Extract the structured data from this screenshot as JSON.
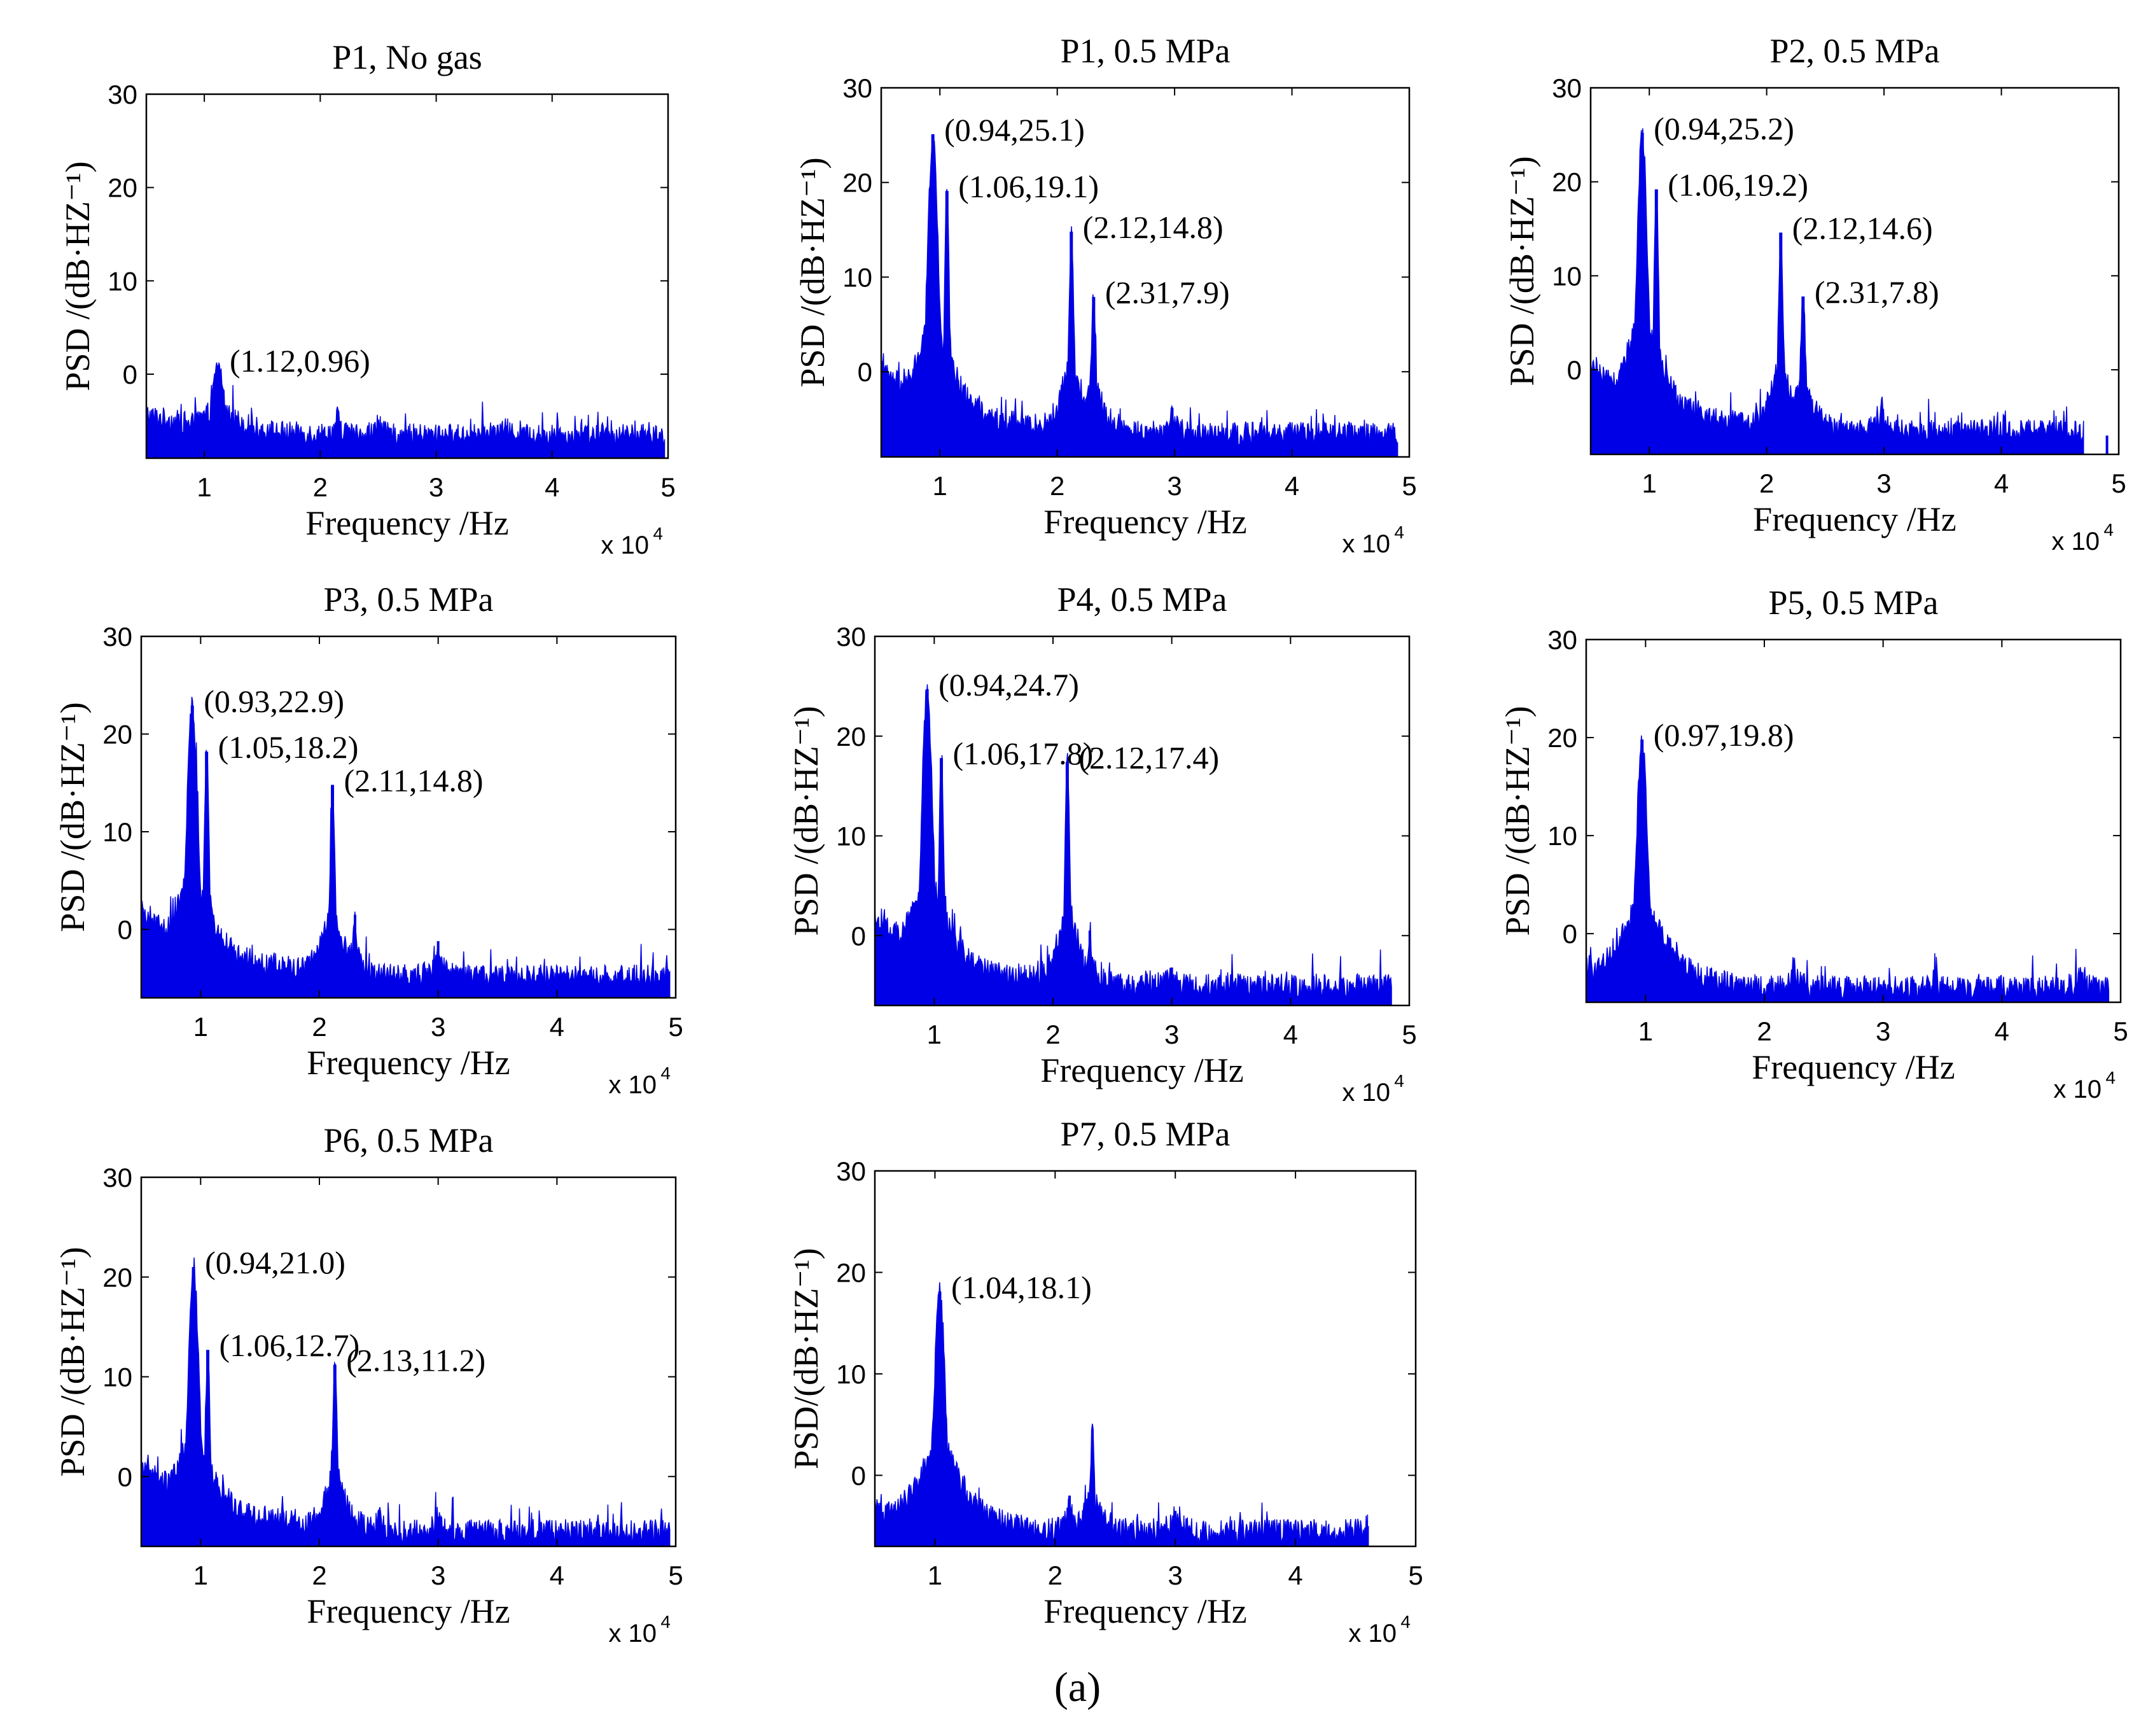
{
  "figure_caption": "(a)",
  "chart_data": [
    {
      "type": "area",
      "title": "P1, No gas",
      "xlabel": "Frequency /Hz",
      "ylabel": "PSD /(dB·HZ⁻¹)",
      "x_multiplier": "x 10",
      "x_exponent": "4",
      "xlim": [
        0.5,
        5
      ],
      "ylim": [
        -9,
        30
      ],
      "xticks": [
        1,
        2,
        3,
        4,
        5
      ],
      "yticks": [
        0,
        10,
        20,
        30
      ],
      "baseline": -6.5,
      "end_x": 4.97,
      "peaks": [
        {
          "x": 1.12,
          "y": 0.96,
          "label": "(1.12,0.96)"
        }
      ],
      "extra_peaks": [
        {
          "x": 2.15,
          "y": -4.5
        },
        {
          "x": 2.5,
          "y": -5.2
        },
        {
          "x": 3.6,
          "y": -5.5
        }
      ]
    },
    {
      "type": "area",
      "title": "P1, 0.5 MPa",
      "xlabel": "Frequency /Hz",
      "ylabel": "PSD /(dB·HZ⁻¹)",
      "x_multiplier": "x 10",
      "x_exponent": "4",
      "xlim": [
        0.5,
        5
      ],
      "ylim": [
        -9,
        30
      ],
      "xticks": [
        1,
        2,
        3,
        4,
        5
      ],
      "yticks": [
        0,
        10,
        20,
        30
      ],
      "baseline": -6.5,
      "end_x": 4.9,
      "peaks": [
        {
          "x": 0.94,
          "y": 25.1,
          "label": "(0.94,25.1)"
        },
        {
          "x": 1.06,
          "y": 19.1,
          "label": "(1.06,19.1)"
        },
        {
          "x": 2.12,
          "y": 14.8,
          "label": "(2.12,14.8)"
        },
        {
          "x": 2.31,
          "y": 7.9,
          "label": "(2.31,7.9)"
        }
      ],
      "extra_peaks": [
        {
          "x": 2.98,
          "y": -3.8
        },
        {
          "x": 4.65,
          "y": -6.5
        }
      ]
    },
    {
      "type": "area",
      "title": "P2, 0.5 MPa",
      "xlabel": "Frequency /Hz",
      "ylabel": "PSD /(dB·HZ⁻¹)",
      "x_multiplier": "x 10",
      "x_exponent": "4",
      "xlim": [
        0.5,
        5
      ],
      "ylim": [
        -9,
        30
      ],
      "xticks": [
        1,
        2,
        3,
        4,
        5
      ],
      "yticks": [
        0,
        10,
        20,
        30
      ],
      "baseline": -6.5,
      "end_x": 4.7,
      "peaks": [
        {
          "x": 0.94,
          "y": 25.2,
          "label": "(0.94,25.2)"
        },
        {
          "x": 1.06,
          "y": 19.2,
          "label": "(1.06,19.2)"
        },
        {
          "x": 2.12,
          "y": 14.6,
          "label": "(2.12,14.6)"
        },
        {
          "x": 2.31,
          "y": 7.8,
          "label": "(2.31,7.8)"
        }
      ],
      "extra_peaks": [
        {
          "x": 2.98,
          "y": -3.8
        },
        {
          "x": 4.9,
          "y": -7
        }
      ]
    },
    {
      "type": "area",
      "title": "P3, 0.5 MPa",
      "xlabel": "Frequency /Hz",
      "ylabel": "PSD /(dB·HZ⁻¹)",
      "x_multiplier": "x 10",
      "x_exponent": "4",
      "xlim": [
        0.5,
        5
      ],
      "ylim": [
        -7,
        30
      ],
      "xticks": [
        1,
        2,
        3,
        4,
        5
      ],
      "yticks": [
        0,
        10,
        20,
        30
      ],
      "baseline": -4.8,
      "end_x": 4.95,
      "peaks": [
        {
          "x": 0.93,
          "y": 22.9,
          "label": "(0.93,22.9)"
        },
        {
          "x": 1.05,
          "y": 18.2,
          "label": "(1.05,18.2)"
        },
        {
          "x": 2.11,
          "y": 14.8,
          "label": "(2.11,14.8)"
        }
      ],
      "extra_peaks": [
        {
          "x": 2.3,
          "y": 1.5
        },
        {
          "x": 3.0,
          "y": -1.2
        }
      ]
    },
    {
      "type": "area",
      "title": "P4, 0.5 MPa",
      "xlabel": "Frequency /Hz",
      "ylabel": "PSD /(dB·HZ⁻¹)",
      "x_multiplier": "x 10",
      "x_exponent": "4",
      "xlim": [
        0.5,
        5
      ],
      "ylim": [
        -7,
        30
      ],
      "xticks": [
        1,
        2,
        3,
        4,
        5
      ],
      "yticks": [
        0,
        10,
        20,
        30
      ],
      "baseline": -5.0,
      "end_x": 4.85,
      "peaks": [
        {
          "x": 0.94,
          "y": 24.7,
          "label": "(0.94,24.7)"
        },
        {
          "x": 1.06,
          "y": 17.8,
          "label": "(1.06,17.8)"
        },
        {
          "x": 2.12,
          "y": 17.4,
          "label": "(2.12,17.4)"
        }
      ],
      "extra_peaks": [
        {
          "x": 2.31,
          "y": 0.5
        },
        {
          "x": 3.0,
          "y": -3.2
        }
      ]
    },
    {
      "type": "area",
      "title": "P5, 0.5 MPa",
      "xlabel": "Frequency /Hz",
      "ylabel": "PSD /(dB·HZ⁻¹)",
      "x_multiplier": "x 10",
      "x_exponent": "4",
      "xlim": [
        0.5,
        5
      ],
      "ylim": [
        -7,
        30
      ],
      "xticks": [
        1,
        2,
        3,
        4,
        5
      ],
      "yticks": [
        0,
        10,
        20,
        30
      ],
      "baseline": -5.5,
      "end_x": 4.9,
      "peaks": [
        {
          "x": 0.97,
          "y": 19.8,
          "label": "(0.97,19.8)"
        }
      ],
      "extra_peaks": [
        {
          "x": 2.25,
          "y": -3.2
        },
        {
          "x": 4.65,
          "y": -4.0
        }
      ]
    },
    {
      "type": "area",
      "title": "P6, 0.5 MPa",
      "xlabel": "Frequency /Hz",
      "ylabel": "PSD /(dB·HZ⁻¹)",
      "x_multiplier": "x 10",
      "x_exponent": "4",
      "xlim": [
        0.5,
        5
      ],
      "ylim": [
        -7,
        30
      ],
      "xticks": [
        1,
        2,
        3,
        4,
        5
      ],
      "yticks": [
        0,
        10,
        20,
        30
      ],
      "baseline": -5.5,
      "end_x": 4.95,
      "peaks": [
        {
          "x": 0.94,
          "y": 21.0,
          "label": "(0.94,21.0)"
        },
        {
          "x": 1.06,
          "y": 12.7,
          "label": "(1.06,12.7)"
        },
        {
          "x": 2.13,
          "y": 11.2,
          "label": "(2.13,11.2)"
        }
      ],
      "extra_peaks": [
        {
          "x": 2.5,
          "y": -3.5
        },
        {
          "x": 3.0,
          "y": -4.0
        }
      ]
    },
    {
      "type": "area",
      "title": "P7,  0.5 MPa",
      "xlabel": "Frequency /Hz",
      "ylabel": "PSD/(dB·HZ⁻¹)",
      "x_multiplier": "x 10",
      "x_exponent": "4",
      "xlim": [
        0.5,
        5
      ],
      "ylim": [
        -7,
        30
      ],
      "xticks": [
        1,
        2,
        3,
        4,
        5
      ],
      "yticks": [
        0,
        10,
        20,
        30
      ],
      "baseline": -5.5,
      "end_x": 4.6,
      "peaks": [
        {
          "x": 1.04,
          "y": 18.1,
          "label": "(1.04,18.1)"
        }
      ],
      "extra_peaks": [
        {
          "x": 2.31,
          "y": 4.5
        },
        {
          "x": 2.12,
          "y": -2.0
        },
        {
          "x": 3.0,
          "y": -3.5
        },
        {
          "x": 4.6,
          "y": -5.0
        }
      ]
    }
  ]
}
